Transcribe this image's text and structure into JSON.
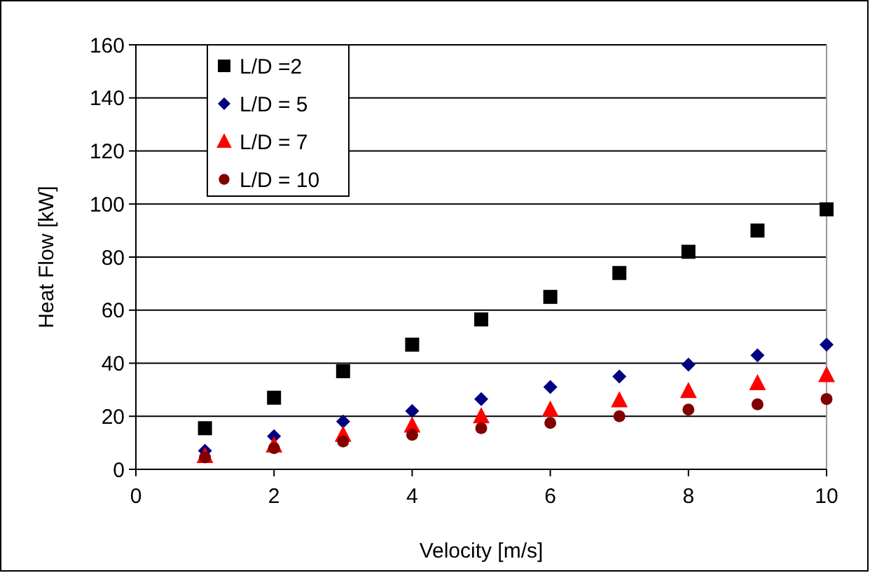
{
  "chart_data": {
    "type": "scatter",
    "xlabel": "Velocity [m/s]",
    "ylabel": "Heat Flow [kW]",
    "x": [
      1,
      2,
      3,
      4,
      5,
      6,
      7,
      8,
      9,
      10
    ],
    "xlim": [
      0,
      10
    ],
    "xticks": [
      0,
      2,
      4,
      6,
      8,
      10
    ],
    "ylim": [
      0,
      160
    ],
    "yticks": [
      0,
      20,
      40,
      60,
      80,
      100,
      120,
      140,
      160
    ],
    "grid": "y",
    "legend": "top left",
    "series": [
      {
        "name": "L/D =2",
        "color": "#000000",
        "marker": "square",
        "values": [
          15.5,
          27,
          37,
          47,
          56.5,
          65,
          74,
          82,
          90,
          98
        ]
      },
      {
        "name": "L/D = 5",
        "color": "#000080",
        "marker": "diamond",
        "values": [
          7,
          12.5,
          18,
          22,
          26.5,
          31,
          35,
          39.5,
          43,
          47
        ]
      },
      {
        "name": "L/D = 7",
        "color": "#ff0000",
        "marker": "triangle",
        "values": [
          5,
          9,
          13,
          16.5,
          20,
          22.5,
          26,
          29.5,
          32.5,
          35.5
        ]
      },
      {
        "name": "L/D = 10",
        "color": "#800000",
        "marker": "circle",
        "values": [
          4.5,
          8,
          10.5,
          13,
          15.5,
          17.5,
          20,
          22.5,
          24.5,
          26.5
        ]
      }
    ]
  }
}
